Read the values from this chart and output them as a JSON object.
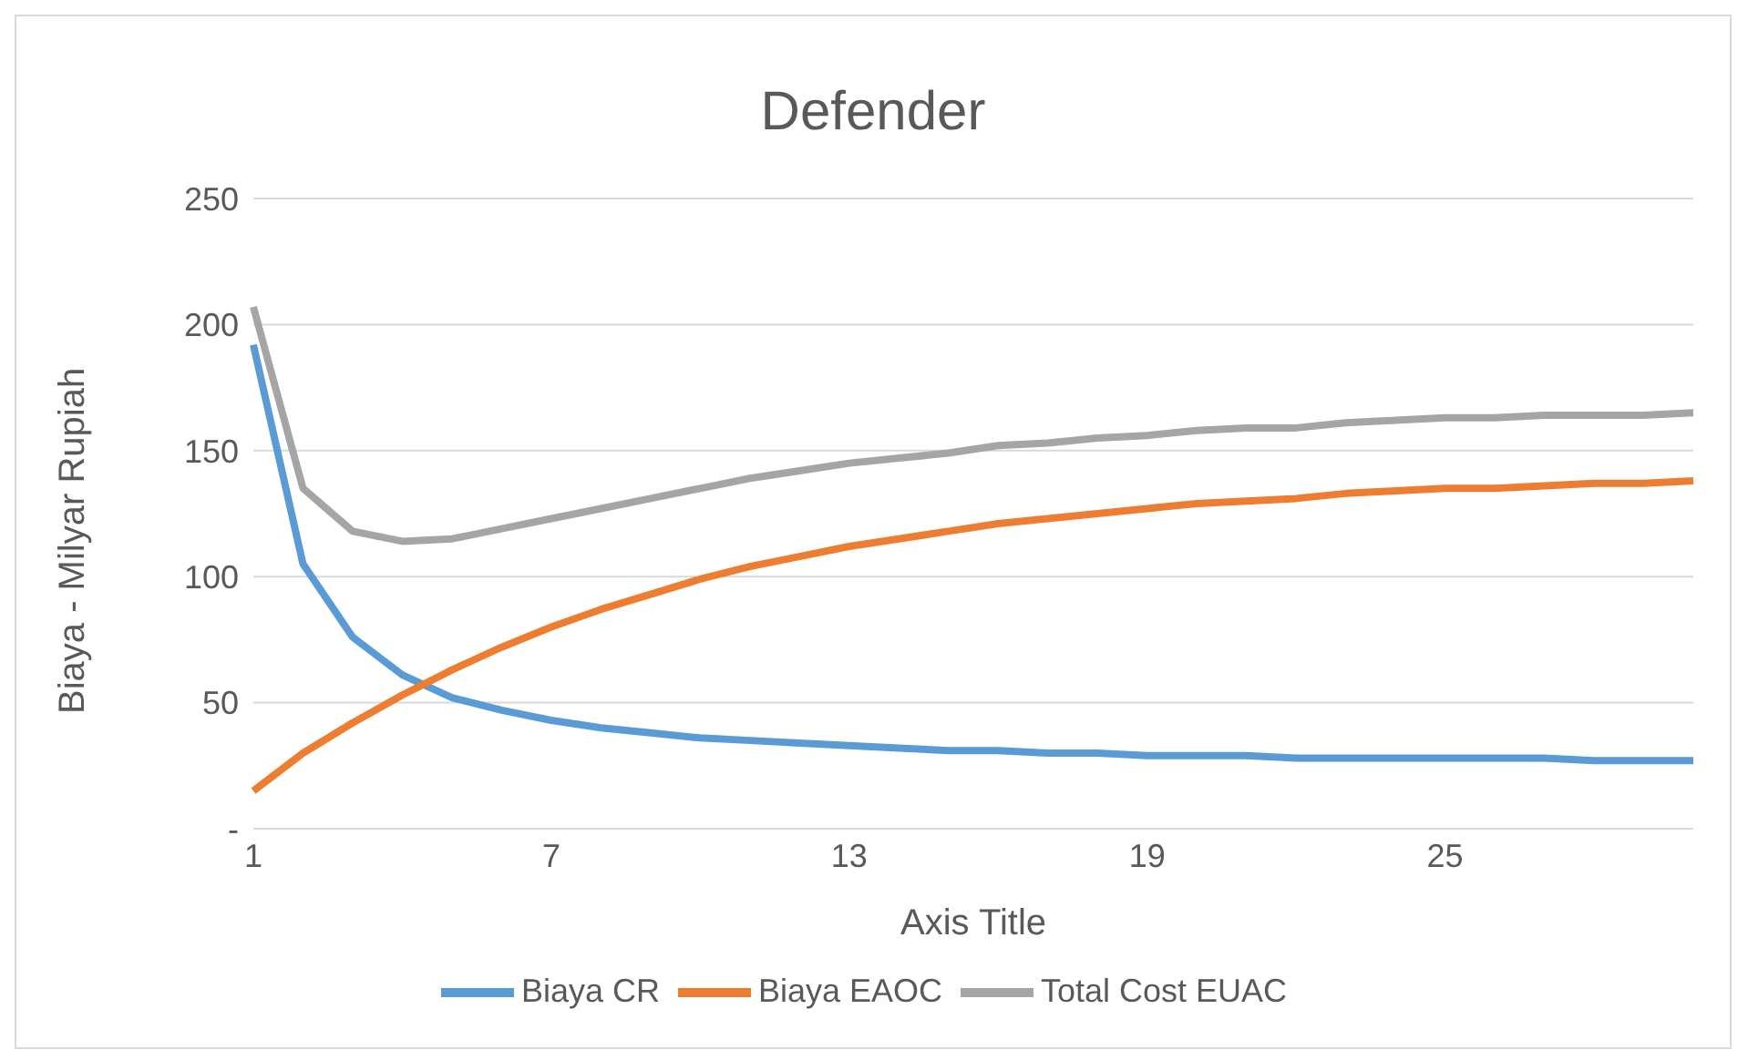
{
  "chart_data": {
    "type": "line",
    "title": "Defender",
    "xlabel": "Axis Title",
    "ylabel": "Biaya - Milyar Rupiah",
    "categories": [
      "1",
      null,
      null,
      null,
      null,
      null,
      "7",
      null,
      null,
      null,
      null,
      null,
      "13",
      null,
      null,
      null,
      null,
      null,
      "19",
      null,
      null,
      null,
      null,
      null,
      "25",
      null,
      null,
      null,
      null,
      null
    ],
    "series": [
      {
        "name": "Biaya CR",
        "color": "#5b9bd5",
        "values": [
          192,
          105,
          76,
          61,
          52,
          47,
          43,
          40,
          38,
          36,
          35,
          34,
          33,
          32,
          31,
          31,
          30,
          30,
          29,
          29,
          29,
          28,
          28,
          28,
          28,
          28,
          28,
          27,
          27,
          27
        ]
      },
      {
        "name": "Biaya EAOC",
        "color": "#ed7d31",
        "values": [
          15,
          30,
          42,
          53,
          63,
          72,
          80,
          87,
          93,
          99,
          104,
          108,
          112,
          115,
          118,
          121,
          123,
          125,
          127,
          129,
          130,
          131,
          133,
          134,
          135,
          135,
          136,
          137,
          137,
          138
        ]
      },
      {
        "name": "Total Cost EUAC",
        "color": "#a5a5a5",
        "values": [
          207,
          135,
          118,
          114,
          115,
          119,
          123,
          127,
          131,
          135,
          139,
          142,
          145,
          147,
          149,
          152,
          153,
          155,
          156,
          158,
          159,
          159,
          161,
          162,
          163,
          163,
          164,
          164,
          164,
          165
        ]
      }
    ],
    "ylim": [
      0,
      250
    ],
    "yticks": [
      {
        "value": 0,
        "label": "-"
      },
      50,
      100,
      150,
      200,
      250
    ],
    "grid": "y",
    "legend": "bottom",
    "marker": "none",
    "line_style": "solid"
  }
}
